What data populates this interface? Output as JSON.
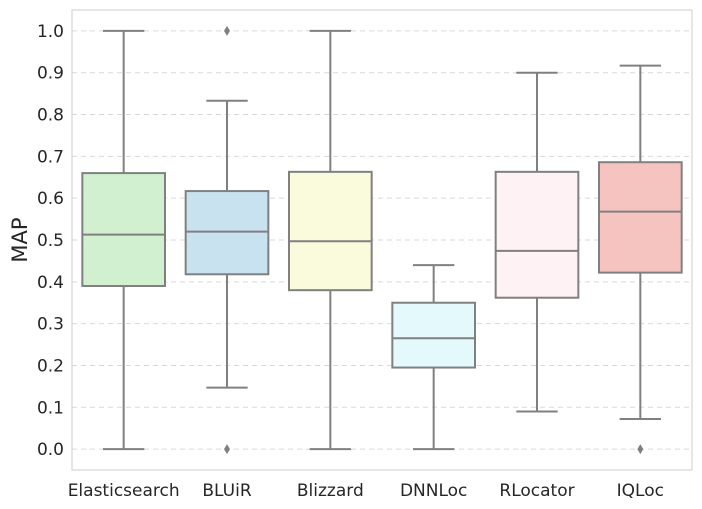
{
  "chart_data": {
    "type": "box",
    "title": "",
    "xlabel": "",
    "ylabel": "MAP",
    "ylim": [
      -0.05,
      1.05
    ],
    "yticks": [
      0.0,
      0.1,
      0.2,
      0.3,
      0.4,
      0.5,
      0.6,
      0.7,
      0.8,
      0.9,
      1.0
    ],
    "ytick_labels": [
      "0.0",
      "0.1",
      "0.2",
      "0.3",
      "0.4",
      "0.5",
      "0.6",
      "0.7",
      "0.8",
      "0.9",
      "1.0"
    ],
    "grid": "horizontal-dashed",
    "legend": "none",
    "categories": [
      "Elasticsearch",
      "BLUiR",
      "Blizzard",
      "DNNLoc",
      "RLocator",
      "IQLoc"
    ],
    "boxes": [
      {
        "name": "Elasticsearch",
        "whisker_low": 0.0,
        "q1": 0.39,
        "median": 0.513,
        "q3": 0.66,
        "whisker_high": 1.0,
        "outliers": [],
        "color": "#d0f0d0"
      },
      {
        "name": "BLUiR",
        "whisker_low": 0.147,
        "q1": 0.418,
        "median": 0.52,
        "q3": 0.617,
        "whisker_high": 0.833,
        "outliers": [
          0.0,
          1.0
        ],
        "color": "#c9e2f0"
      },
      {
        "name": "Blizzard",
        "whisker_low": 0.0,
        "q1": 0.38,
        "median": 0.497,
        "q3": 0.663,
        "whisker_high": 1.0,
        "outliers": [],
        "color": "#fafadd"
      },
      {
        "name": "DNNLoc",
        "whisker_low": 0.0,
        "q1": 0.195,
        "median": 0.265,
        "q3": 0.35,
        "whisker_high": 0.44,
        "outliers": [],
        "color": "#e3f9fb"
      },
      {
        "name": "RLocator",
        "whisker_low": 0.09,
        "q1": 0.362,
        "median": 0.474,
        "q3": 0.663,
        "whisker_high": 0.9,
        "outliers": [],
        "color": "#fff2f5"
      },
      {
        "name": "IQLoc",
        "whisker_low": 0.072,
        "q1": 0.422,
        "median": 0.568,
        "q3": 0.686,
        "whisker_high": 0.917,
        "outliers": [
          0.0
        ],
        "color": "#f5c4c1"
      }
    ],
    "line_color": "#808080",
    "grid_color": "#d9d9d9",
    "frame_color": "#cccccc"
  }
}
